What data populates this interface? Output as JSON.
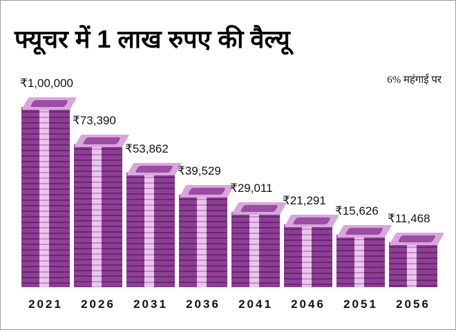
{
  "title": "फ्यूचर में 1 लाख रुपए की वैल्यू",
  "note": "6% महंगाई पर",
  "colors": {
    "note_purple": "#8d3f95",
    "band": "#e9c7ec",
    "top": "#d8a6dc"
  },
  "chart_data": {
    "type": "bar",
    "title": "फ्यूचर में 1 लाख रुपए की वैल्यू",
    "subtitle": "6% महंगाई पर",
    "categories": [
      "2021",
      "2026",
      "2031",
      "2036",
      "2041",
      "2046",
      "2051",
      "2056"
    ],
    "values": [
      100000,
      73390,
      53862,
      39529,
      29011,
      21291,
      15626,
      11468
    ],
    "labels": [
      "₹1,00,000",
      "₹73,390",
      "₹53,862",
      "₹39,529",
      "₹29,011",
      "₹21,291",
      "₹15,626",
      "₹11,468"
    ],
    "mark": "stacked currency bundles"
  }
}
